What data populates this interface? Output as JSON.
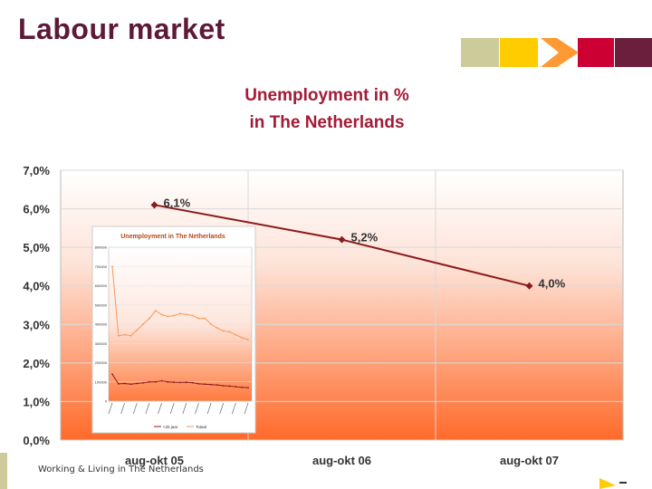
{
  "slide": {
    "title": "Labour market",
    "footer": "Working & Living in The Netherlands"
  },
  "colors": {
    "title": "#5e1838",
    "series_line": "#8b1a1a",
    "plot_gradient_top": "#ffffff",
    "plot_gradient_bottom": "#ff6a2a"
  },
  "chart_data": [
    {
      "type": "line",
      "title": "Unemployment in %",
      "subtitle": "in The Netherlands",
      "categories": [
        "aug-okt 05",
        "aug-okt 06",
        "aug-okt 07"
      ],
      "series": [
        {
          "values": [
            6.1,
            5.2,
            4.0
          ],
          "data_labels": [
            "6,1%",
            "5,2%",
            "4,0%"
          ]
        }
      ],
      "ylim": [
        0,
        7
      ],
      "y_ticks": [
        0,
        1,
        2,
        3,
        4,
        5,
        6,
        7
      ],
      "y_tick_labels": [
        "0,0%",
        "1,0%",
        "2,0%",
        "3,0%",
        "4,0%",
        "5,0%",
        "6,0%",
        "7,0%"
      ],
      "grid": true
    },
    {
      "type": "line",
      "title": "Unemployment in The Netherlands",
      "ylim": [
        0,
        800000
      ],
      "y_tick_labels": [
        "0",
        "100000",
        "200000",
        "300000",
        "400000",
        "500000",
        "600000",
        "700000",
        "800000"
      ],
      "series": [
        {
          "name": "<25 jaar",
          "values": [
            140000,
            90000,
            92000,
            88000,
            92000,
            95000,
            100000,
            100000,
            105000,
            100000,
            98000,
            97000,
            98000,
            96000,
            90000,
            88000,
            86000,
            84000,
            80000,
            78000,
            75000,
            72000,
            70000
          ]
        },
        {
          "name": "Totaal",
          "values": [
            700000,
            340000,
            345000,
            340000,
            370000,
            400000,
            430000,
            470000,
            450000,
            440000,
            445000,
            455000,
            450000,
            445000,
            430000,
            430000,
            400000,
            380000,
            365000,
            360000,
            345000,
            330000,
            320000
          ]
        }
      ]
    }
  ]
}
